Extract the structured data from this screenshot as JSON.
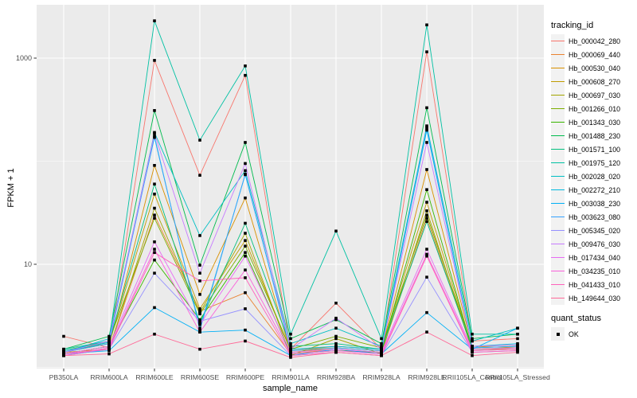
{
  "figure": {
    "bg": "#FFFFFF",
    "panel_bg": "#EBEBEB",
    "grid_color": "#FFFFFF",
    "tick_mark_color": "#333333",
    "tick_label_color": "#4D4D4D",
    "axis_title_color": "#000000",
    "legend_key_bg": "#F2F2F2",
    "point_color": "#000000"
  },
  "chart_data": {
    "type": "line",
    "title": "",
    "xlabel": "sample_name",
    "ylabel": "FPKM + 1",
    "y_scale": "log10",
    "grid": true,
    "legend_position": "right",
    "y_ticks": [
      {
        "label": "1000",
        "value": 1000
      },
      {
        "label": "10",
        "value": 10
      }
    ],
    "y_minor_gridlines": [
      100,
      1
    ],
    "ylim": [
      1.1,
      3300
    ],
    "categories": [
      "PB350LA",
      "RRIM600LA",
      "RRIM600LE",
      "RRIM600SE",
      "RRIM600PE",
      "RRIM901LA",
      "RRIM928BA",
      "RRIM928LA",
      "RRIM928LE",
      "RRII105LA_Control",
      "RRII105LA_Stressed"
    ],
    "legend": {
      "title": "tracking_id"
    },
    "quant_legend": {
      "title": "quant_status",
      "items": [
        "OK"
      ]
    },
    "series": [
      {
        "name": "Hb_000042_280",
        "color": "#F8766D",
        "values": [
          2.0,
          1.55,
          950,
          73,
          680,
          1.5,
          4.2,
          1.5,
          1150,
          1.8,
          1.9
        ]
      },
      {
        "name": "Hb_000069_440",
        "color": "#EA8331",
        "values": [
          1.4,
          1.5,
          30,
          3.5,
          5.3,
          1.35,
          1.5,
          1.4,
          28,
          1.5,
          1.5
        ]
      },
      {
        "name": "Hb_000530_040",
        "color": "#D89000",
        "values": [
          1.35,
          1.6,
          91,
          5.1,
          44,
          1.4,
          1.55,
          1.45,
          83,
          1.6,
          1.55
        ]
      },
      {
        "name": "Hb_000608_270",
        "color": "#C09B00",
        "values": [
          1.4,
          1.7,
          48,
          3.7,
          17,
          1.45,
          1.6,
          1.5,
          40,
          1.55,
          1.6
        ]
      },
      {
        "name": "Hb_000697_030",
        "color": "#A3A500",
        "values": [
          1.3,
          1.5,
          35,
          3.4,
          20,
          1.3,
          1.9,
          1.35,
          33,
          1.45,
          1.5
        ]
      },
      {
        "name": "Hb_001266_010",
        "color": "#7CAE00",
        "values": [
          1.45,
          1.8,
          28,
          3.3,
          15,
          1.5,
          2.0,
          1.55,
          30,
          1.6,
          1.65
        ]
      },
      {
        "name": "Hb_001343_030",
        "color": "#39B600",
        "values": [
          1.35,
          1.6,
          11,
          2.9,
          13,
          1.35,
          1.45,
          1.4,
          53,
          1.5,
          1.55
        ]
      },
      {
        "name": "Hb_001488_230",
        "color": "#00BB4E",
        "values": [
          1.5,
          2.0,
          310,
          9.8,
          152,
          1.9,
          2.9,
          1.7,
          330,
          1.9,
          2.1
        ]
      },
      {
        "name": "Hb_001571_100",
        "color": "#00BF7D",
        "values": [
          1.4,
          1.75,
          60,
          2.7,
          25,
          1.6,
          1.7,
          1.5,
          26,
          1.55,
          1.6
        ]
      },
      {
        "name": "Hb_001975_120",
        "color": "#00C1A3",
        "values": [
          1.5,
          1.8,
          2300,
          160,
          840,
          2.1,
          21,
          1.9,
          2100,
          2.1,
          2.1
        ]
      },
      {
        "name": "Hb_002028_020",
        "color": "#00BFC4",
        "values": [
          1.45,
          1.75,
          190,
          19,
          81,
          1.7,
          2.4,
          1.6,
          220,
          1.8,
          2.4
        ]
      },
      {
        "name": "Hb_002272_210",
        "color": "#00BAE0",
        "values": [
          1.4,
          1.9,
          170,
          2.4,
          74,
          1.5,
          1.6,
          1.5,
          200,
          1.6,
          1.7
        ]
      },
      {
        "name": "Hb_003038_230",
        "color": "#00B0F6",
        "values": [
          1.35,
          1.45,
          3.8,
          2.2,
          2.3,
          1.3,
          1.5,
          1.35,
          3.4,
          1.5,
          2.4
        ]
      },
      {
        "name": "Hb_003623_080",
        "color": "#35A2FF",
        "values": [
          1.4,
          1.7,
          175,
          2.3,
          75,
          1.45,
          1.55,
          1.45,
          210,
          1.55,
          1.6
        ]
      },
      {
        "name": "Hb_005345_020",
        "color": "#9590FF",
        "values": [
          1.3,
          1.5,
          8.2,
          2.8,
          3.7,
          1.3,
          1.4,
          1.3,
          7.5,
          1.4,
          1.45
        ]
      },
      {
        "name": "Hb_009476_030",
        "color": "#C77CFF",
        "values": [
          1.4,
          1.8,
          185,
          8.2,
          95,
          1.5,
          3.0,
          1.5,
          152,
          1.6,
          1.65
        ]
      },
      {
        "name": "Hb_017434_040",
        "color": "#E76BF3",
        "values": [
          1.35,
          1.6,
          16.5,
          2.6,
          12,
          1.4,
          1.5,
          1.4,
          14,
          1.5,
          1.55
        ]
      },
      {
        "name": "Hb_034235_010",
        "color": "#FA62DB",
        "values": [
          1.3,
          1.55,
          14,
          2.2,
          8.8,
          1.35,
          1.45,
          1.35,
          12.5,
          1.45,
          1.5
        ]
      },
      {
        "name": "Hb_041433_010",
        "color": "#FF62BC",
        "values": [
          1.35,
          1.5,
          13,
          6.9,
          7.4,
          1.3,
          1.4,
          1.3,
          12,
          1.4,
          1.45
        ]
      },
      {
        "name": "Hb_149644_030",
        "color": "#FF6A98",
        "values": [
          1.3,
          1.35,
          2.1,
          1.5,
          1.8,
          1.25,
          1.4,
          1.3,
          2.2,
          1.3,
          1.4
        ]
      }
    ]
  }
}
